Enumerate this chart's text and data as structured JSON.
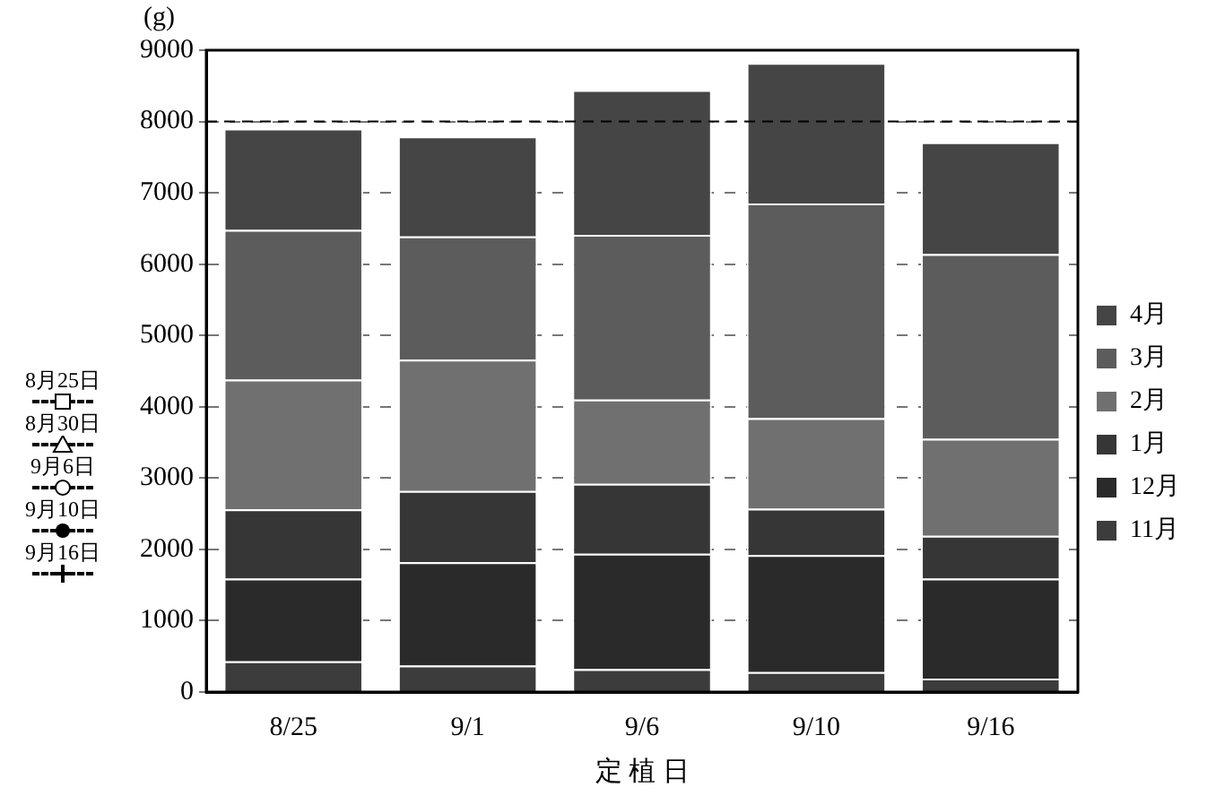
{
  "chart_data": {
    "type": "bar",
    "stacked": true,
    "ylabel": "(g)",
    "xlabel": "定 植 日",
    "categories": [
      "8/25",
      "9/1",
      "9/6",
      "9/10",
      "9/16"
    ],
    "series": [
      {
        "name": "11月",
        "color": "#3c3c3c",
        "values": [
          430,
          370,
          320,
          280,
          190
        ]
      },
      {
        "name": "12月",
        "color": "#2a2a2a",
        "values": [
          1160,
          1450,
          1620,
          1640,
          1400
        ]
      },
      {
        "name": "1月",
        "color": "#363636",
        "values": [
          970,
          1000,
          980,
          650,
          600
        ]
      },
      {
        "name": "2月",
        "color": "#707070",
        "values": [
          1820,
          1840,
          1180,
          1270,
          1360
        ]
      },
      {
        "name": "3月",
        "color": "#5c5c5c",
        "values": [
          2100,
          1730,
          2310,
          3010,
          2590
        ]
      },
      {
        "name": "4月",
        "color": "#454545",
        "values": [
          1420,
          1400,
          2030,
          1970,
          1570
        ]
      }
    ],
    "ylim": [
      0,
      9000
    ],
    "yticks": [
      0,
      1000,
      2000,
      3000,
      4000,
      5000,
      6000,
      7000,
      8000,
      9000
    ],
    "grid": "y",
    "legend": "right",
    "ref_lines": [
      {
        "axis": "y",
        "value": 8000,
        "label": null,
        "color": "#000000",
        "line_style": "dashed"
      }
    ],
    "annotations": [
      "8月25日",
      "8月30日",
      "9月6日",
      "9月10日",
      "9月16日"
    ]
  }
}
